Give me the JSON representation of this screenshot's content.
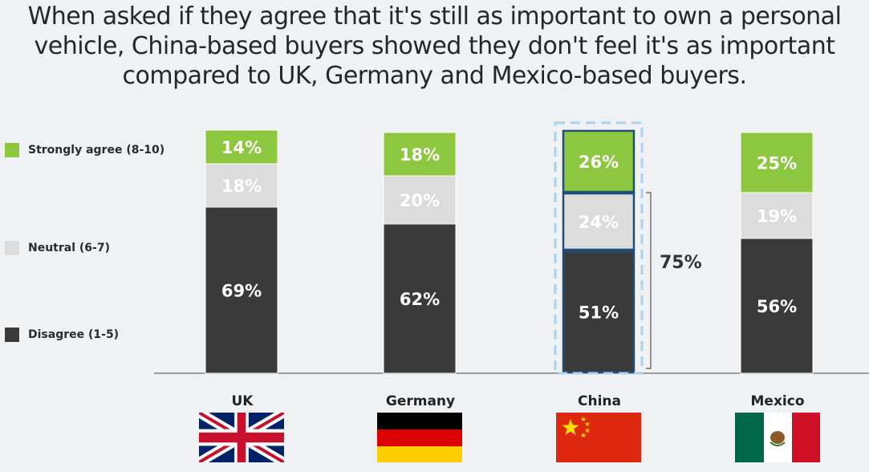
{
  "title": "When asked if they agree that it's still as important to own a personal vehicle, China-based buyers showed they don't feel it's as important compared to UK, Germany and Mexico-based buyers.",
  "colors": {
    "strongly_agree": "#8dc63f",
    "neutral": "#dcdcdc",
    "disagree": "#3a3a3a",
    "highlight_border": "#1f4e79",
    "highlight_dash": "#a9d2f0"
  },
  "legend": [
    {
      "key": "strongly_agree",
      "label": "Strongly agree (8-10)"
    },
    {
      "key": "neutral",
      "label": "Neutral (6-7)"
    },
    {
      "key": "disagree",
      "label": "Disagree (1-5)"
    }
  ],
  "bracket": {
    "label": "75%",
    "category": "China"
  },
  "chart_data": {
    "type": "bar",
    "stacked": true,
    "categories": [
      "UK",
      "Germany",
      "China",
      "Mexico"
    ],
    "series": [
      {
        "name": "Disagree (1-5)",
        "values": [
          69,
          62,
          51,
          56
        ]
      },
      {
        "name": "Neutral (6-7)",
        "values": [
          18,
          20,
          24,
          19
        ]
      },
      {
        "name": "Strongly agree (8-10)",
        "values": [
          14,
          18,
          26,
          25
        ]
      }
    ],
    "labels": [
      [
        "69%",
        "62%",
        "51%",
        "56%"
      ],
      [
        "18%",
        "20%",
        "24%",
        "19%"
      ],
      [
        "14%",
        "18%",
        "26%",
        "25%"
      ]
    ],
    "highlight": "China",
    "legend_position": "left",
    "grid": false
  },
  "flags": [
    {
      "country": "UK",
      "icon": "uk-flag-icon"
    },
    {
      "country": "Germany",
      "icon": "germany-flag-icon"
    },
    {
      "country": "China",
      "icon": "china-flag-icon"
    },
    {
      "country": "Mexico",
      "icon": "mexico-flag-icon"
    }
  ]
}
